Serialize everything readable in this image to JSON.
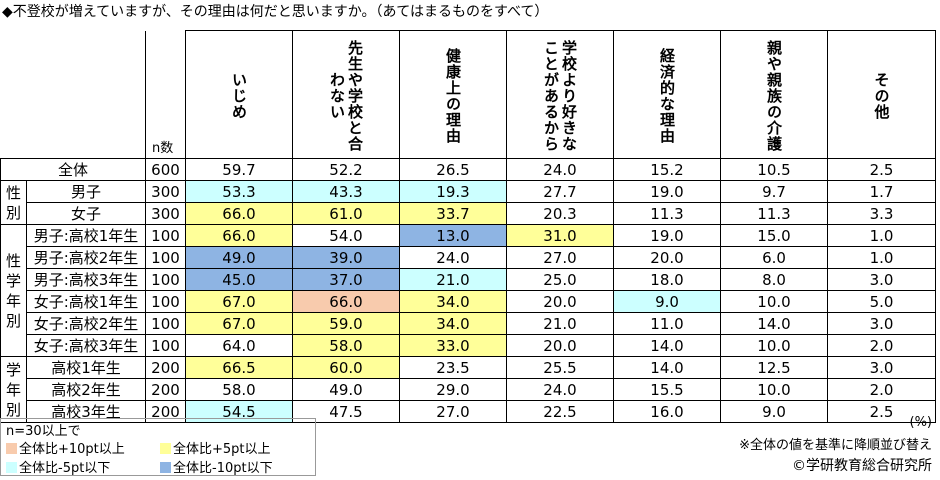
{
  "title": "◆不登校が増えていますが、その理由は何だと思いますか。（あてはまるものをすべて）",
  "chart_data": {
    "type": "table",
    "n_label": "n数",
    "columns": [
      "いじめ",
      "先生や学校と合わない",
      "健康上の理由",
      "学校より好きなことがあるから",
      "経済的な理由",
      "親や親族の介護",
      "その他"
    ],
    "groups": [
      {
        "label": "",
        "rows": [
          {
            "segment": "全体",
            "n": "600",
            "values": [
              "59.7",
              "52.2",
              "26.5",
              "24.0",
              "15.2",
              "10.5",
              "2.5"
            ],
            "hl": [
              "",
              "",
              "",
              "",
              "",
              "",
              ""
            ]
          }
        ]
      },
      {
        "label": "性別",
        "rows": [
          {
            "segment": "男子",
            "n": "300",
            "values": [
              "53.3",
              "43.3",
              "19.3",
              "27.7",
              "19.0",
              "9.7",
              "1.7"
            ],
            "hl": [
              "lo5",
              "lo5",
              "lo5",
              "",
              "",
              "",
              ""
            ]
          },
          {
            "segment": "女子",
            "n": "300",
            "values": [
              "66.0",
              "61.0",
              "33.7",
              "20.3",
              "11.3",
              "11.3",
              "3.3"
            ],
            "hl": [
              "hi5",
              "hi5",
              "hi5",
              "",
              "",
              "",
              ""
            ]
          }
        ]
      },
      {
        "label": "性学年別",
        "rows": [
          {
            "segment": "男子:高校1年生",
            "n": "100",
            "values": [
              "66.0",
              "54.0",
              "13.0",
              "31.0",
              "19.0",
              "15.0",
              "1.0"
            ],
            "hl": [
              "hi5",
              "",
              "lo10",
              "hi5",
              "",
              "",
              ""
            ]
          },
          {
            "segment": "男子:高校2年生",
            "n": "100",
            "values": [
              "49.0",
              "39.0",
              "24.0",
              "27.0",
              "20.0",
              "6.0",
              "1.0"
            ],
            "hl": [
              "lo10",
              "lo10",
              "",
              "",
              "",
              "",
              ""
            ]
          },
          {
            "segment": "男子:高校3年生",
            "n": "100",
            "values": [
              "45.0",
              "37.0",
              "21.0",
              "25.0",
              "18.0",
              "8.0",
              "3.0"
            ],
            "hl": [
              "lo10",
              "lo10",
              "lo5",
              "",
              "",
              "",
              ""
            ]
          },
          {
            "segment": "女子:高校1年生",
            "n": "100",
            "values": [
              "67.0",
              "66.0",
              "34.0",
              "20.0",
              "9.0",
              "10.0",
              "5.0"
            ],
            "hl": [
              "hi5",
              "hi10",
              "hi5",
              "",
              "lo5",
              "",
              ""
            ]
          },
          {
            "segment": "女子:高校2年生",
            "n": "100",
            "values": [
              "67.0",
              "59.0",
              "34.0",
              "21.0",
              "11.0",
              "14.0",
              "3.0"
            ],
            "hl": [
              "hi5",
              "hi5",
              "hi5",
              "",
              "",
              "",
              ""
            ]
          },
          {
            "segment": "女子:高校3年生",
            "n": "100",
            "values": [
              "64.0",
              "58.0",
              "33.0",
              "20.0",
              "14.0",
              "10.0",
              "2.0"
            ],
            "hl": [
              "",
              "hi5",
              "hi5",
              "",
              "",
              "",
              ""
            ]
          }
        ]
      },
      {
        "label": "学年別",
        "rows": [
          {
            "segment": "高校1年生",
            "n": "200",
            "values": [
              "66.5",
              "60.0",
              "23.5",
              "25.5",
              "14.0",
              "12.5",
              "3.0"
            ],
            "hl": [
              "hi5",
              "hi5",
              "",
              "",
              "",
              "",
              ""
            ]
          },
          {
            "segment": "高校2年生",
            "n": "200",
            "values": [
              "58.0",
              "49.0",
              "29.0",
              "24.0",
              "15.5",
              "10.0",
              "2.0"
            ],
            "hl": [
              "",
              "",
              "",
              "",
              "",
              "",
              ""
            ]
          },
          {
            "segment": "高校3年生",
            "n": "200",
            "values": [
              "54.5",
              "47.5",
              "27.0",
              "22.5",
              "16.0",
              "9.0",
              "2.5"
            ],
            "hl": [
              "lo5",
              "",
              "",
              "",
              "",
              "",
              ""
            ]
          }
        ]
      }
    ]
  },
  "legend": {
    "title": "n=30以上で",
    "items": [
      {
        "key": "hi10",
        "label": "全体比+10pt以上",
        "color": "#f8cbad"
      },
      {
        "key": "hi5",
        "label": "全体比+5pt以上",
        "color": "#ffff99"
      },
      {
        "key": "lo5",
        "label": "全体比-5pt以下",
        "color": "#ccffff"
      },
      {
        "key": "lo10",
        "label": "全体比-10pt以下",
        "color": "#8eb4e3"
      }
    ]
  },
  "unit": "(%)",
  "sort_note": "※全体の値を基準に降順並び替え",
  "copyright": "©学研教育総合研究所"
}
